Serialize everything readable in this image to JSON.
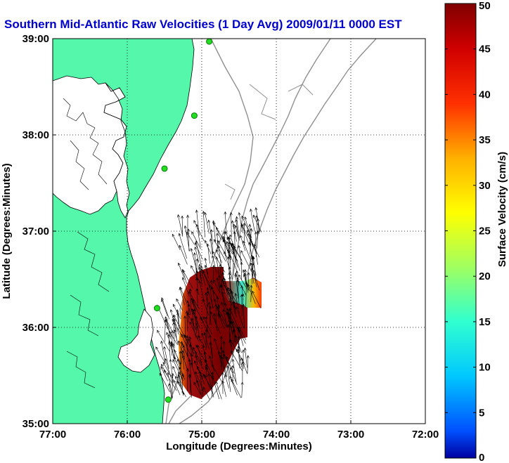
{
  "chart_data": {
    "type": "heatmap",
    "title": "Southern Mid-Atlantic Raw Velocities (1 Day Avg) 2009/01/11 0000 EST",
    "xlabel": "Longitude (Degrees:Minutes)",
    "ylabel": "Latitude (Degrees:Minutes)",
    "x_ticks": [
      "77:00",
      "76:00",
      "75:00",
      "74:00",
      "73:00",
      "72:00"
    ],
    "y_ticks": [
      "39:00",
      "38:00",
      "37:00",
      "36:00",
      "35:00"
    ],
    "xlim": [
      -77,
      -72
    ],
    "ylim": [
      35,
      39
    ],
    "grid": true,
    "colorbar": {
      "label": "Surface Velocity (cm/s)",
      "range": [
        0,
        50
      ],
      "ticks": [
        "0",
        "5",
        "10",
        "15",
        "20",
        "25",
        "30",
        "35",
        "40",
        "45",
        "50"
      ]
    },
    "stations": [
      {
        "lon": -74.9,
        "lat": 38.97
      },
      {
        "lon": -75.1,
        "lat": 38.2
      },
      {
        "lon": -75.5,
        "lat": 37.65
      },
      {
        "lon": -75.6,
        "lat": 36.2
      },
      {
        "lon": -75.45,
        "lat": 35.25
      }
    ],
    "velocity_field": {
      "lon_range": [
        -75.5,
        -74.2
      ],
      "lat_range": [
        35.25,
        37.0
      ],
      "speed_min": 10,
      "speed_max": 50
    },
    "colors": {
      "land": "#55f7aa",
      "water": "#ffffff",
      "bathymetry": "#909090",
      "station": "#22dd22",
      "title": "#0000cc",
      "vectors": "#000000"
    }
  }
}
